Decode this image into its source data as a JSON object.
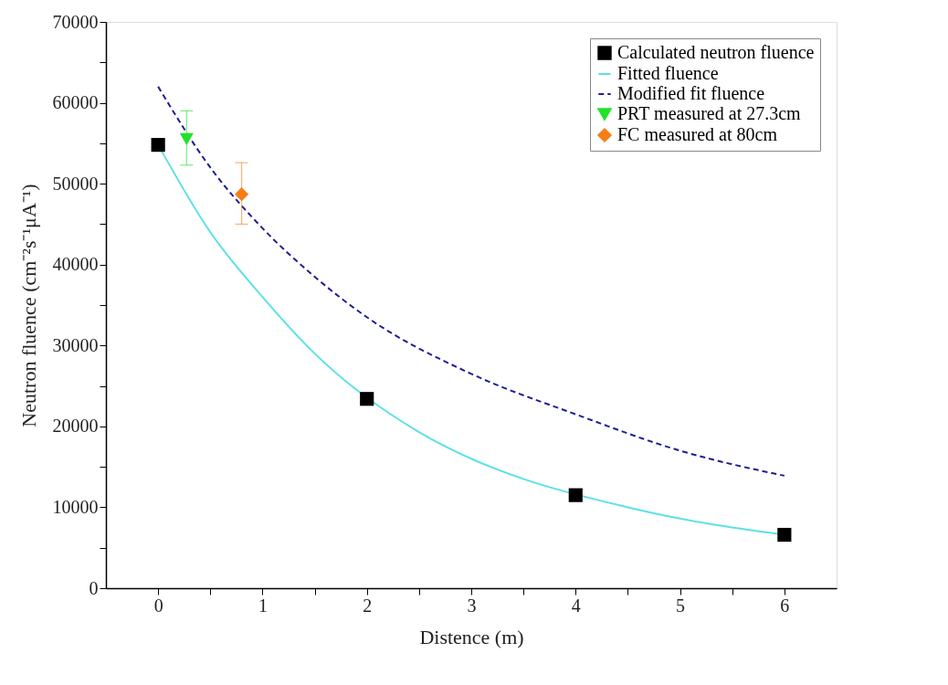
{
  "chart_data": {
    "type": "line",
    "xlabel": "Distence (m)",
    "ylabel": "Neutron fluence (cm⁻²s⁻¹μA⁻¹)",
    "xlim": [
      -0.5,
      6.5
    ],
    "ylim": [
      0,
      70000
    ],
    "xticks": [
      0,
      {
        "value": 0.5,
        "label": null
      },
      1,
      {
        "value": 1.5,
        "label": null
      },
      2,
      {
        "value": 2.5,
        "label": null
      },
      3,
      {
        "value": 3.5,
        "label": null
      },
      4,
      {
        "value": 4.5,
        "label": null
      },
      5,
      {
        "value": 5.5,
        "label": null
      },
      6
    ],
    "yticks": [
      0,
      {
        "value": 5000,
        "label": null
      },
      10000,
      {
        "value": 15000,
        "label": null
      },
      20000,
      {
        "value": 25000,
        "label": null
      },
      30000,
      {
        "value": 35000,
        "label": null
      },
      40000,
      {
        "value": 45000,
        "label": null
      },
      50000,
      {
        "value": 55000,
        "label": null
      },
      60000,
      {
        "value": 65000,
        "label": null
      },
      70000
    ],
    "grid": false,
    "legend": "top right",
    "series": [
      {
        "name": "Calculated neutron fluence",
        "type": "scatter",
        "marker": "square",
        "color": "#000000",
        "x": [
          0,
          2,
          4,
          6
        ],
        "values": [
          54800,
          23400,
          11500,
          6600
        ]
      },
      {
        "name": "Fitted fluence",
        "line_style": "solid",
        "color": "#5ce1e6",
        "x": [
          0,
          0.5,
          1,
          1.5,
          2.5,
          3,
          3.5,
          4.5,
          5,
          5.5,
          6
        ],
        "values": [
          54800,
          44000,
          36000,
          29000,
          19300,
          16000,
          13500,
          10000,
          8600,
          7500,
          6600
        ]
      },
      {
        "name": "Modified fit fluence",
        "line_style": "dashed",
        "color": "#1f1f8f",
        "x": [
          0,
          0.5,
          1,
          1.5,
          2,
          3,
          4,
          5,
          6
        ],
        "values": [
          62000,
          52000,
          44500,
          38500,
          33500,
          26500,
          21500,
          17000,
          13900
        ]
      },
      {
        "name": "PRT measured at 27.3cm",
        "type": "scatter",
        "marker": "triangle",
        "color": "#22e32a",
        "x": [
          0.273
        ],
        "values": [
          55500
        ],
        "errors": [
          [
            52300,
            59000
          ]
        ]
      },
      {
        "name": "FC measured at 80cm",
        "type": "scatter",
        "marker": "diamond",
        "color": "#f57f17",
        "x": [
          0.8
        ],
        "values": [
          48700
        ],
        "errors": [
          [
            45000,
            52600
          ]
        ]
      }
    ]
  }
}
